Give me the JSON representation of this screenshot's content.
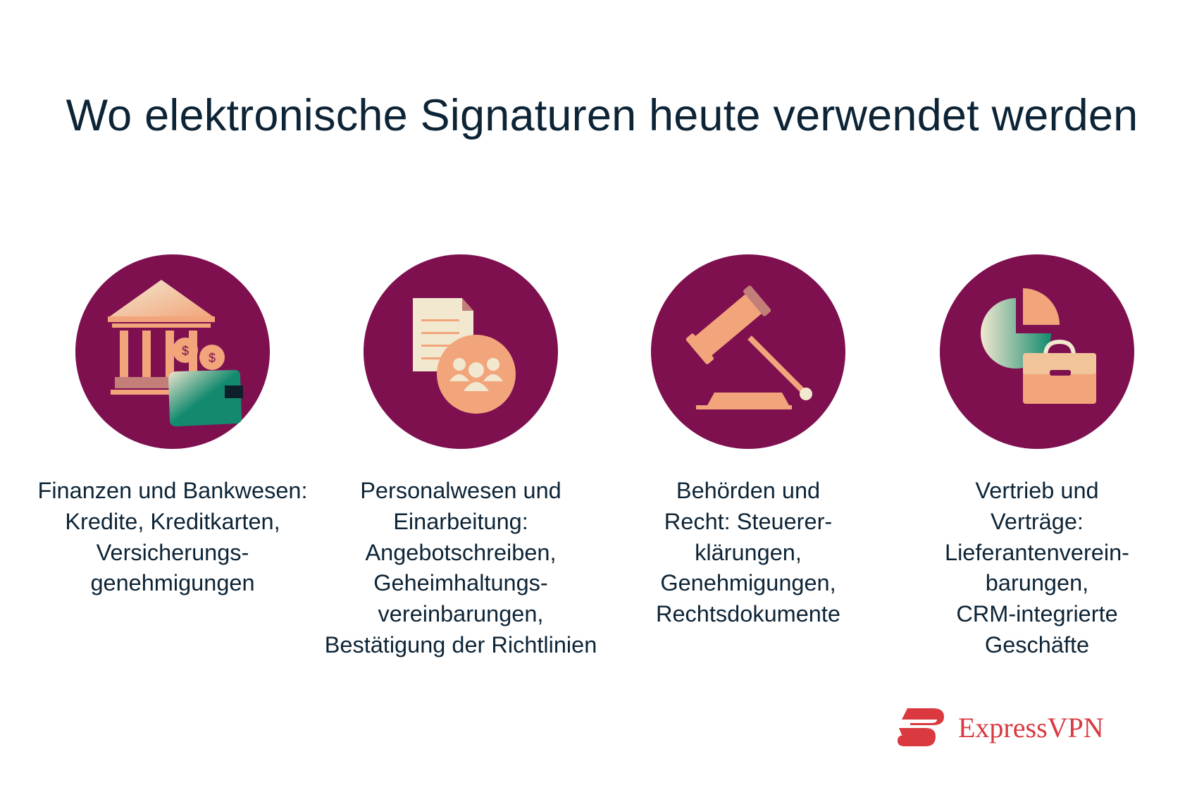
{
  "title": "Wo elektronische Signaturen heute verwendet werden",
  "colors": {
    "circle": "#7e1050",
    "peach": "#f2a47a",
    "cream": "#f2e8d0",
    "green": "#138a6e",
    "brand": "#da3940",
    "text": "#0d2436"
  },
  "categories": [
    {
      "icon": "bank-wallet-icon",
      "lines": [
        "Finanzen und Bankwesen:",
        "Kredite, Kreditkarten,",
        "Versicherungs-",
        "genehmigungen"
      ]
    },
    {
      "icon": "document-people-icon",
      "lines": [
        "Personalwesen und",
        "Einarbeitung:",
        "Angebotschreiben,",
        "Geheimhaltungs-",
        "vereinbarungen,",
        "Bestätigung der Richtlinien"
      ]
    },
    {
      "icon": "gavel-icon",
      "lines": [
        "Behörden und",
        "Recht: Steuerer-",
        "klärungen,",
        "Genehmigungen,",
        "Rechtsdokumente"
      ]
    },
    {
      "icon": "pie-chart-briefcase-icon",
      "lines": [
        "Vertrieb und",
        "Verträge:",
        "Lieferantenverein-",
        "barungen,",
        "CRM-integrierte",
        "Geschäfte"
      ]
    }
  ],
  "logo": {
    "text": "ExpressVPN",
    "icon": "expressvpn-logo-icon"
  }
}
